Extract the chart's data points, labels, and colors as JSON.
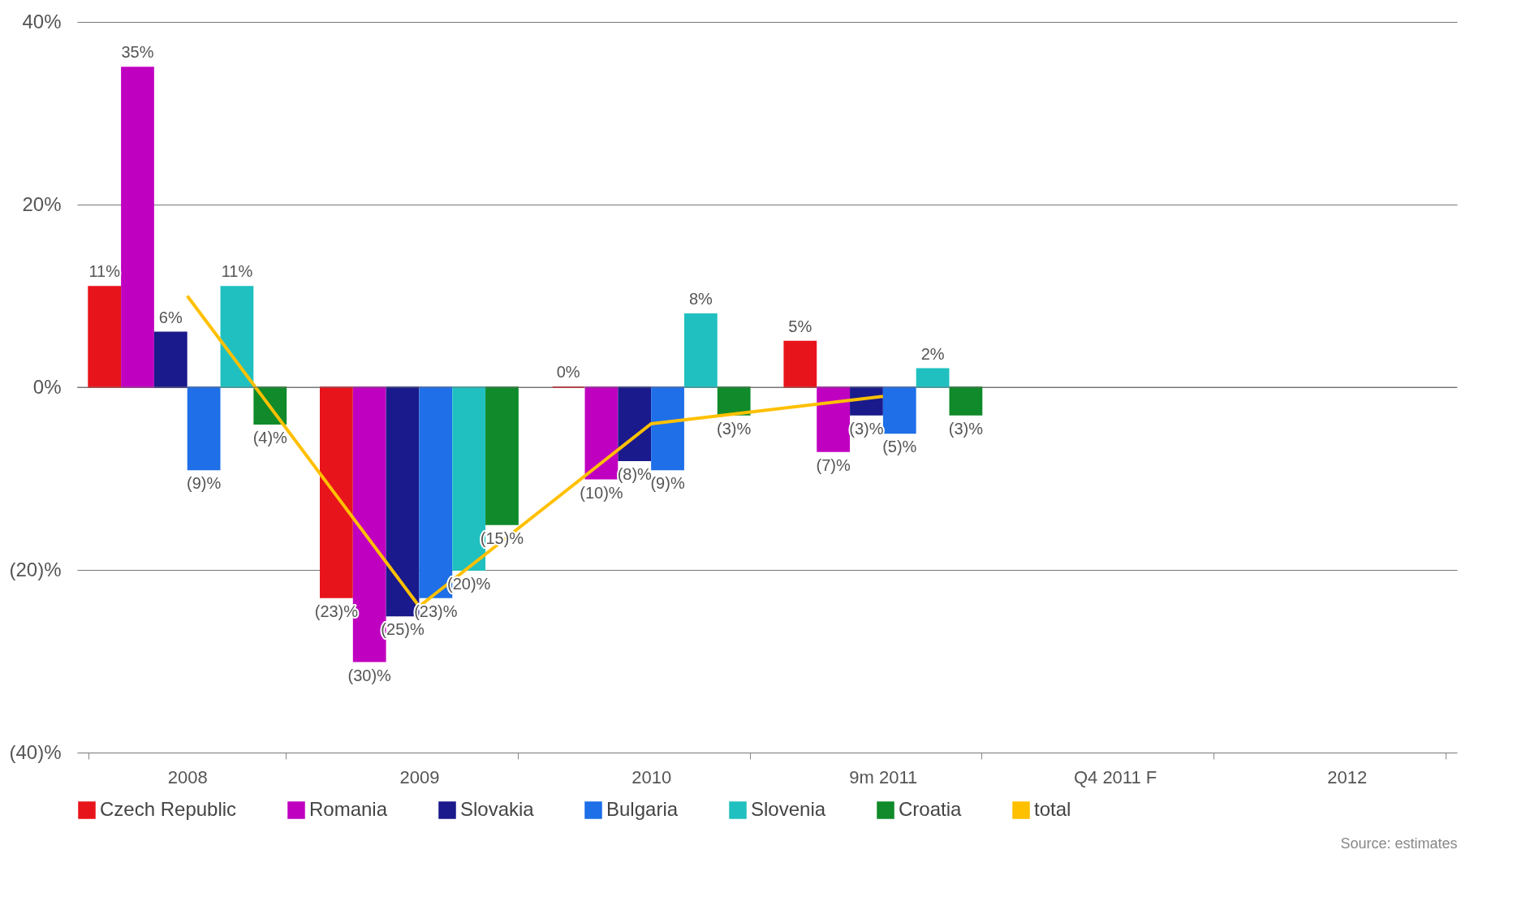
{
  "chart_data": {
    "type": "bar",
    "categories": [
      "2008",
      "2009",
      "2010",
      "9m 2011",
      "Q4 2011 F",
      "2012"
    ],
    "series": [
      {
        "name": "Czech Republic",
        "color": "#e8141b",
        "values": [
          11,
          -23,
          0,
          5,
          null,
          null
        ],
        "value_labels": [
          "11%",
          "(23)%",
          "0%",
          "5%",
          null,
          null
        ]
      },
      {
        "name": "Romania",
        "color": "#c000c0",
        "values": [
          35,
          -30,
          -10,
          -7,
          null,
          null
        ],
        "value_labels": [
          "35%",
          "(30)%",
          "(10)%",
          "(7)%",
          null,
          null
        ]
      },
      {
        "name": "Slovakia",
        "color": "#1a1a8c",
        "values": [
          6,
          -25,
          -8,
          -3,
          null,
          null
        ],
        "value_labels": [
          "6%",
          "(25)%",
          "(8)%",
          "(3)%",
          null,
          null
        ]
      },
      {
        "name": "Bulgaria",
        "color": "#1e6fe8",
        "values": [
          -9,
          -23,
          -9,
          -5,
          null,
          null
        ],
        "value_labels": [
          "(9)%",
          "(23)%",
          "(9)%",
          "(5)%",
          null,
          null
        ]
      },
      {
        "name": "Slovenia",
        "color": "#20c0c0",
        "values": [
          11,
          -20,
          8,
          2,
          null,
          null
        ],
        "value_labels": [
          "11%",
          "(20)%",
          "8%",
          "2%",
          null,
          null
        ]
      },
      {
        "name": "Croatia",
        "color": "#108a2a",
        "values": [
          -4,
          -15,
          -3,
          -3,
          null,
          null
        ],
        "value_labels": [
          "(4)%",
          "(15)%",
          "(3)%",
          "(3)%",
          null,
          null
        ]
      },
      {
        "name": "total",
        "type": "line",
        "color": "#ffc000",
        "values": [
          10,
          -24,
          -4,
          -1,
          null,
          null
        ]
      }
    ],
    "ylim": [
      -40,
      40
    ],
    "yticks": [
      {
        "value": -40,
        "label": "(40)%"
      },
      {
        "value": -20,
        "label": "(20)%"
      },
      {
        "value": 0,
        "label": "0%"
      },
      {
        "value": 20,
        "label": "20%"
      },
      {
        "value": 40,
        "label": "40%"
      }
    ],
    "grid": "y",
    "legend": "bottom",
    "annotations": [
      "Source: estimates"
    ]
  }
}
